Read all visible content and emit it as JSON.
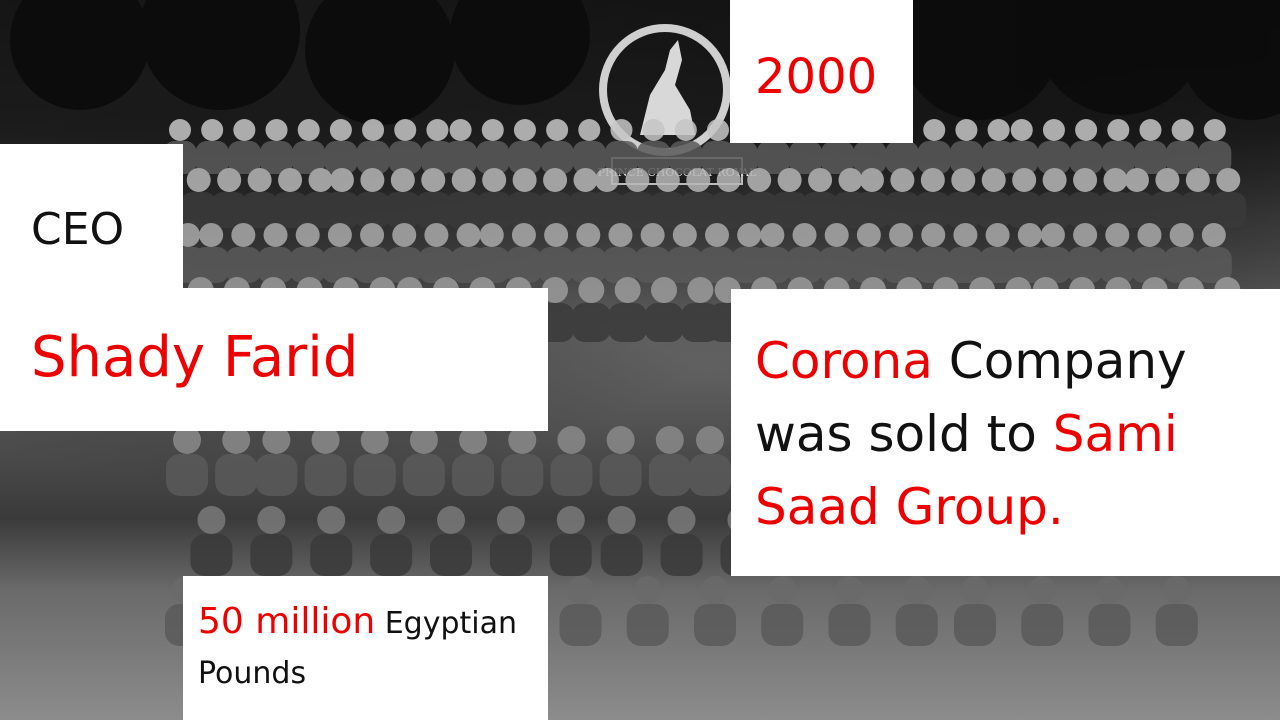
{
  "slide": {
    "year": "2000",
    "role": "CEO",
    "name": "Shady Farid",
    "sale": {
      "company": "Corona",
      "middle": " Company was sold to ",
      "buyer": "Sami Saad Group."
    },
    "price": {
      "amount": "50 million",
      "currency_line1": " Egyptian",
      "currency_line2": "Pounds"
    },
    "photo_sign": "PRINCE CHOCOLAT ROYAL",
    "colors": {
      "accent": "#ee0000",
      "text": "#111111",
      "panel": "#ffffff"
    }
  }
}
